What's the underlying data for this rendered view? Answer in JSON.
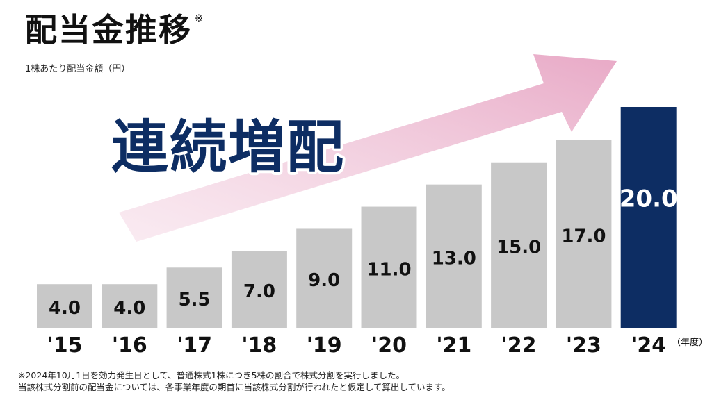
{
  "title": "配当金推移",
  "title_note": "※",
  "subtitle": "1株あたり配当金額（円）",
  "banner": "連続増配",
  "unit_label": "（年度）",
  "footnotes": [
    "※2024年10月1日を効力発生日として、普通株式1株につき5株の割合で株式分割を実行しました。",
    "当該株式分割前の配当金については、各事業年度の期首に当該株式分割が行われたと仮定して算出しています。"
  ],
  "colors": {
    "bar": "#c8c8c8",
    "highlight_bar": "#0d2d63",
    "label": "#111111",
    "highlight_label": "#ffffff",
    "banner_text": "#0d2d63",
    "arrow": "#e8a9c6"
  },
  "chart_data": {
    "type": "bar",
    "categories": [
      "'15",
      "'16",
      "'17",
      "'18",
      "'19",
      "'20",
      "'21",
      "'22",
      "'23",
      "'24"
    ],
    "values": [
      4.0,
      4.0,
      5.5,
      7.0,
      9.0,
      11.0,
      13.0,
      15.0,
      17.0,
      20.0
    ],
    "value_labels": [
      "4.0",
      "4.0",
      "5.5",
      "7.0",
      "9.0",
      "11.0",
      "13.0",
      "15.0",
      "17.0",
      "20.0"
    ],
    "highlight_index": 9,
    "ylim": [
      0,
      20
    ]
  }
}
